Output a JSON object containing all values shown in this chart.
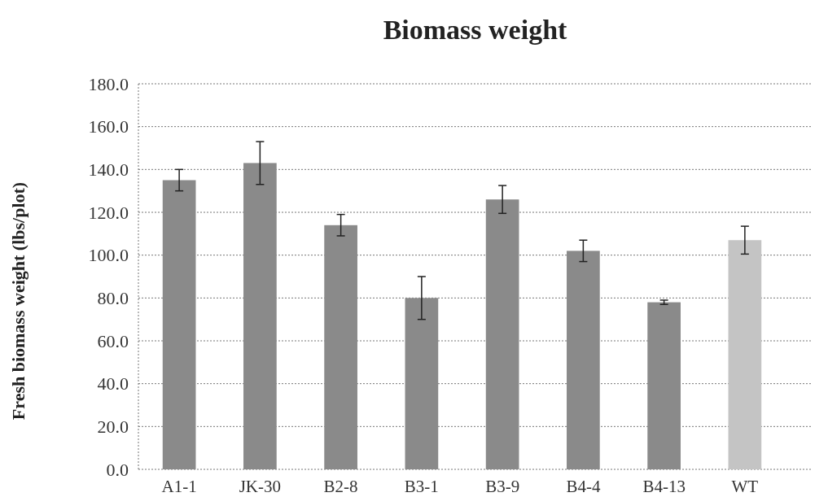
{
  "chart_data": {
    "type": "bar",
    "title": "Biomass weight",
    "ylabel": "Fresh biomass weight (lbs/plot)",
    "categories": [
      "A1-1",
      "JK-30",
      "B2-8",
      "B3-1",
      "B3-9",
      "B4-4",
      "B4-13",
      "WT"
    ],
    "values": [
      135,
      143,
      114,
      80,
      126,
      102,
      78,
      107
    ],
    "errors": [
      5,
      10,
      5,
      10,
      6.5,
      5,
      1,
      6.5
    ],
    "colors": [
      "#8a8a8a",
      "#8a8a8a",
      "#8a8a8a",
      "#8a8a8a",
      "#8a8a8a",
      "#8a8a8a",
      "#8a8a8a",
      "#c4c4c4"
    ],
    "ylim": [
      0,
      180
    ],
    "yticks": [
      {
        "value": 0,
        "label": "0.0"
      },
      {
        "value": 20,
        "label": "20.0"
      },
      {
        "value": 40,
        "label": "40.0"
      },
      {
        "value": 60,
        "label": "60.0"
      },
      {
        "value": 80,
        "label": "80.0"
      },
      {
        "value": 100,
        "label": "100.0"
      },
      {
        "value": 120,
        "label": "120.0"
      },
      {
        "value": 140,
        "label": "140.0"
      },
      {
        "value": 160,
        "label": "160.0"
      },
      {
        "value": 180,
        "label": "180.0"
      }
    ],
    "grid": "y"
  }
}
